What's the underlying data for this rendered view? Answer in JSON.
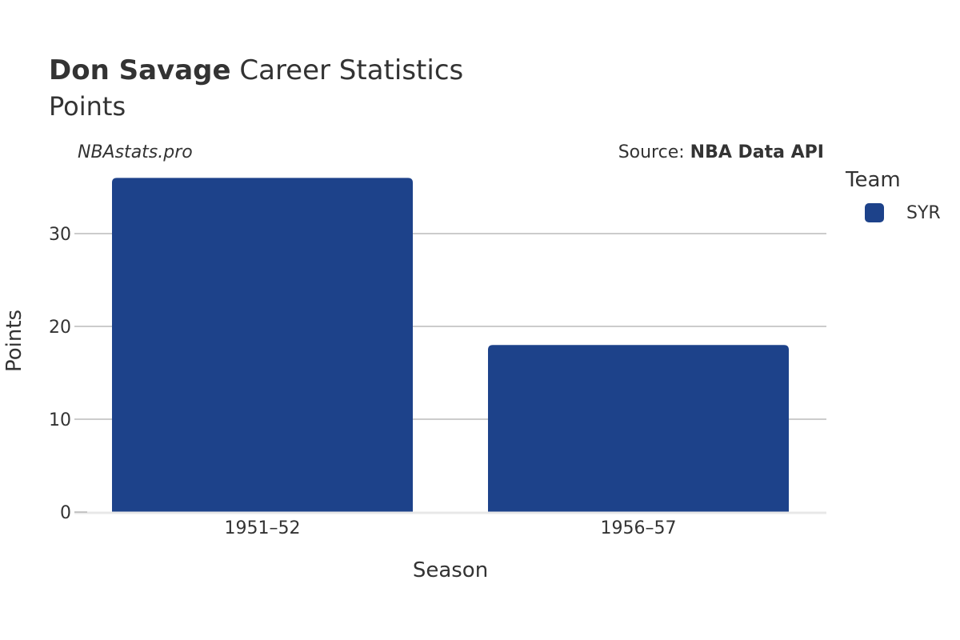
{
  "header": {
    "player_name": "Don Savage",
    "title_rest": "Career Statistics",
    "subtitle": "Points"
  },
  "watermark": "NBAstats.pro",
  "source": {
    "prefix": "Source: ",
    "name": "NBA Data API"
  },
  "legend": {
    "title": "Team",
    "items": [
      {
        "label": "SYR",
        "color": "#1d428a"
      }
    ]
  },
  "chart_data": {
    "type": "bar",
    "title": "Don Savage Career Statistics",
    "subtitle": "Points",
    "xlabel": "Season",
    "ylabel": "Points",
    "categories": [
      "1951–52",
      "1956–57"
    ],
    "series": [
      {
        "name": "SYR",
        "color": "#1d428a",
        "values": [
          36,
          18
        ]
      }
    ],
    "ylim": [
      0,
      36
    ],
    "yticks": [
      0,
      10,
      20,
      30
    ],
    "grid": true,
    "legend_position": "right"
  }
}
